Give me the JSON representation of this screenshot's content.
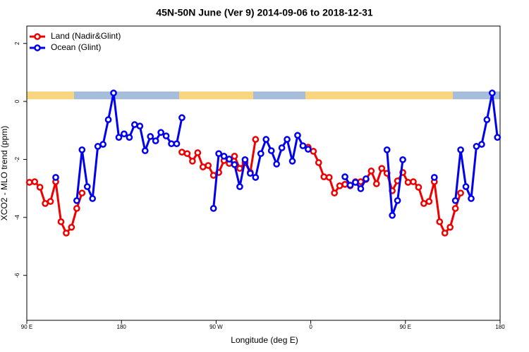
{
  "chart_data": {
    "type": "line",
    "title": "45N-50N June (Ver 9)   2014-09-06 to 2018-12-31",
    "x_label": "Longitude (deg E)",
    "y_label": "XCO2 - MLO trend (ppm)",
    "xlim": [
      90,
      540
    ],
    "ylim": [
      -7.55,
      2.6
    ],
    "xticks": [
      {
        "value": 90,
        "label": "90 E"
      },
      180,
      {
        "value": 270,
        "label": "90 W"
      },
      {
        "value": 360,
        "label": "0"
      },
      {
        "value": 450,
        "label": "90 E"
      },
      {
        "value": 540,
        "label": "180"
      }
    ],
    "yticks": [
      2,
      0,
      -2,
      -4,
      -6
    ],
    "legend": "top-left",
    "x": [
      92.5,
      97.5,
      102.5,
      107.5,
      112.5,
      117.5,
      122.5,
      127.5,
      132.5,
      137.5,
      142.5,
      147.5,
      152.5,
      157.5,
      162.5,
      167.5,
      172.5,
      177.5,
      182.5,
      187.5,
      192.5,
      197.5,
      202.5,
      207.5,
      212.5,
      217.5,
      222.5,
      227.5,
      232.5,
      237.5,
      242.5,
      247.5,
      252.5,
      257.5,
      262.5,
      267.5,
      272.5,
      277.5,
      282.5,
      287.5,
      292.5,
      297.5,
      302.5,
      307.5,
      312.5,
      317.5,
      322.5,
      327.5,
      332.5,
      337.5,
      342.5,
      347.5,
      352.5,
      357.5,
      362.5,
      367.5,
      372.5,
      377.5,
      382.5,
      387.5,
      392.5,
      397.5,
      402.5,
      407.5,
      412.5,
      417.5,
      422.5,
      427.5,
      432.5,
      437.5,
      442.5,
      447.5,
      452.5,
      457.5,
      462.5,
      467.5,
      472.5,
      477.5,
      482.5,
      487.5,
      492.5,
      497.5,
      502.5,
      507.5,
      512.5,
      517.5,
      522.5,
      527.5,
      532.5,
      537.5
    ],
    "series": [
      {
        "name": "Land (Nadir&Glint)",
        "color": "#ee0000",
        "values": [
          -2.79,
          -2.77,
          -2.96,
          -3.52,
          -3.45,
          -2.77,
          -4.15,
          -4.54,
          -4.34,
          -3.69,
          -3.16,
          null,
          null,
          null,
          null,
          null,
          null,
          null,
          null,
          null,
          null,
          null,
          null,
          null,
          null,
          null,
          null,
          null,
          null,
          -1.75,
          -1.8,
          -2.06,
          -1.77,
          -2.26,
          -2.21,
          -2.55,
          -2.45,
          -2.04,
          -2.14,
          -1.89,
          -2.31,
          -2.11,
          -2.45,
          -1.31,
          null,
          null,
          null,
          null,
          null,
          null,
          null,
          null,
          null,
          -1.58,
          -1.72,
          -2.11,
          -2.6,
          -2.62,
          -3.16,
          -2.91,
          -2.86,
          -2.91,
          -2.77,
          -2.77,
          -2.69,
          -2.4,
          -2.84,
          -2.31,
          -2.48,
          -3.08,
          -2.74,
          -2.45,
          -2.79,
          -2.77,
          -2.96,
          -3.52,
          -3.45,
          -2.77,
          -4.15,
          -4.54,
          -4.34,
          -3.69,
          -3.16,
          null,
          null,
          null,
          null,
          null,
          null,
          null
        ]
      },
      {
        "name": "Ocean (Glint)",
        "color": "#0000ee",
        "values": [
          null,
          null,
          null,
          null,
          null,
          -2.62,
          null,
          null,
          null,
          -3.42,
          -1.67,
          -2.94,
          -3.35,
          -1.55,
          -1.48,
          -0.63,
          0.29,
          -1.24,
          -1.12,
          -1.24,
          -0.8,
          -0.85,
          -1.7,
          -1.21,
          -1.36,
          -1.07,
          -1.19,
          -1.46,
          -1.46,
          -0.56,
          null,
          null,
          null,
          null,
          null,
          -3.69,
          -1.8,
          -1.89,
          -1.99,
          -2.18,
          -2.94,
          -2.01,
          -2.48,
          -2.62,
          -1.8,
          -1.31,
          -1.7,
          -2.16,
          -1.6,
          -1.31,
          -2.06,
          -1.17,
          -1.53,
          -1.65,
          null,
          null,
          null,
          null,
          null,
          null,
          -2.6,
          -2.89,
          -2.79,
          -3.01,
          -2.67,
          null,
          null,
          null,
          -1.67,
          -3.93,
          -3.42,
          -2.01,
          null,
          null,
          null,
          null,
          null,
          -2.62,
          null,
          null,
          null,
          -3.42,
          -1.67,
          -2.94,
          -3.35,
          -1.55,
          -1.48,
          -0.63,
          0.29,
          -1.24
        ]
      }
    ]
  }
}
